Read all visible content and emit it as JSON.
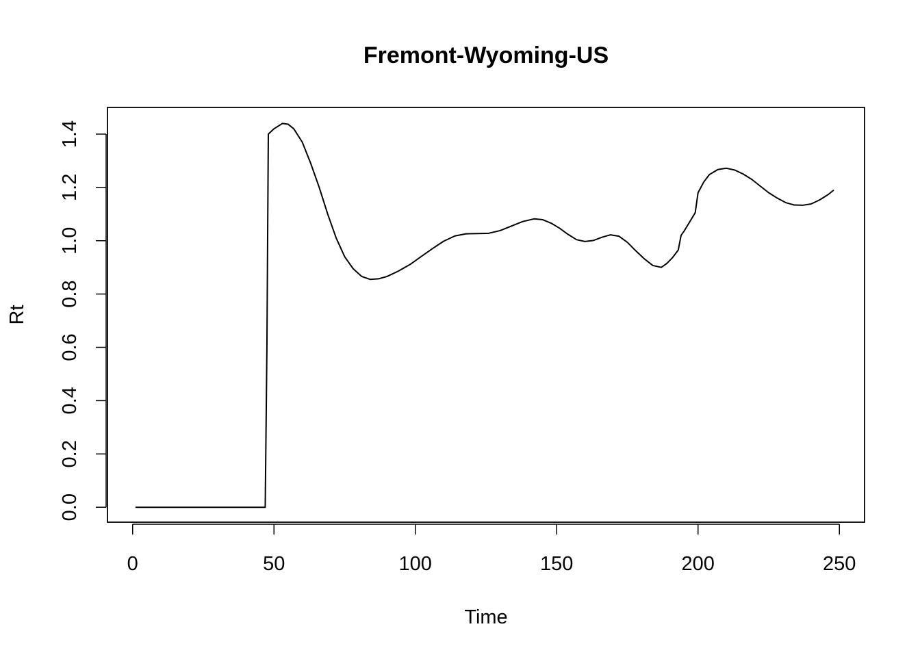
{
  "chart_data": {
    "type": "line",
    "title": "Fremont-Wyoming-US",
    "xlabel": "Time",
    "ylabel": "Rt",
    "xlim": [
      -8.9,
      258.9
    ],
    "ylim": [
      -0.056,
      1.5
    ],
    "x_ticks": [
      0,
      50,
      100,
      150,
      200,
      250
    ],
    "x_tick_labels": [
      "0",
      "50",
      "100",
      "150",
      "200",
      "250"
    ],
    "y_ticks": [
      0.0,
      0.2,
      0.4,
      0.6,
      0.8,
      1.0,
      1.2,
      1.4
    ],
    "y_tick_labels": [
      "0.0",
      "0.2",
      "0.4",
      "0.6",
      "0.8",
      "1.0",
      "1.2",
      "1.4"
    ],
    "grid": false,
    "legend": "none",
    "series": [
      {
        "color": "#000000",
        "x": [
          1,
          10,
          20,
          30,
          40,
          46.9,
          47.5,
          48,
          50,
          53,
          55,
          57,
          60,
          63,
          66,
          69,
          72,
          75,
          78,
          81,
          84,
          87,
          90,
          94,
          98,
          102,
          106,
          110,
          114,
          118,
          122,
          126,
          130,
          134,
          138,
          142,
          145,
          148,
          151,
          154,
          157,
          160,
          163,
          166,
          169,
          172,
          175,
          178,
          181,
          184,
          187,
          189,
          191,
          193,
          194,
          195,
          197,
          199,
          200,
          202,
          204,
          207,
          210,
          213,
          216,
          219,
          222,
          225,
          228,
          231,
          234,
          237,
          240,
          243,
          246,
          248
        ],
        "y": [
          0,
          0,
          0,
          0,
          0,
          0,
          0.6,
          1.4,
          1.42,
          1.44,
          1.437,
          1.42,
          1.37,
          1.29,
          1.2,
          1.1,
          1.01,
          0.94,
          0.895,
          0.866,
          0.855,
          0.857,
          0.866,
          0.886,
          0.91,
          0.94,
          0.97,
          0.998,
          1.018,
          1.026,
          1.027,
          1.028,
          1.038,
          1.055,
          1.072,
          1.082,
          1.079,
          1.066,
          1.047,
          1.024,
          1.004,
          0.997,
          1.001,
          1.013,
          1.022,
          1.017,
          0.994,
          0.962,
          0.932,
          0.907,
          0.9,
          0.915,
          0.937,
          0.965,
          1.02,
          1.035,
          1.07,
          1.105,
          1.18,
          1.22,
          1.248,
          1.267,
          1.272,
          1.265,
          1.25,
          1.23,
          1.205,
          1.18,
          1.16,
          1.143,
          1.134,
          1.133,
          1.138,
          1.153,
          1.173,
          1.19
        ]
      }
    ]
  }
}
